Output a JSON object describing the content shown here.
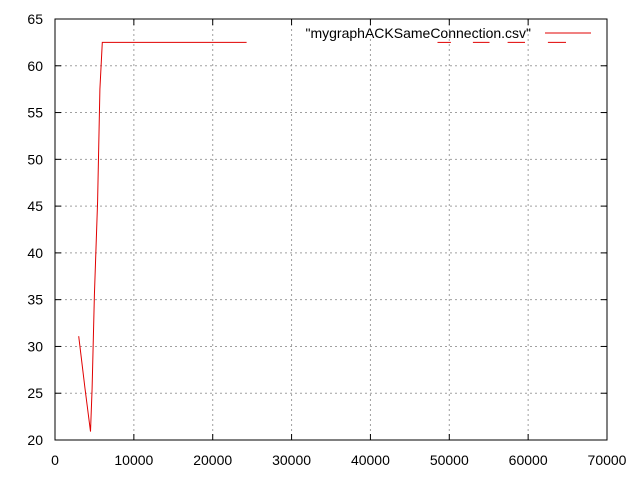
{
  "chart_data": {
    "type": "line",
    "title": "",
    "xlabel": "",
    "ylabel": "",
    "xlim": [
      0,
      70000
    ],
    "ylim": [
      20,
      65
    ],
    "xticks": [
      0,
      10000,
      20000,
      30000,
      40000,
      50000,
      60000,
      70000
    ],
    "yticks": [
      20,
      25,
      30,
      35,
      40,
      45,
      50,
      55,
      60,
      65
    ],
    "xtick_labels": [
      "0",
      "10000",
      "20000",
      "30000",
      "40000",
      "50000",
      "60000",
      "70000"
    ],
    "ytick_labels": [
      "20",
      "25",
      "30",
      "35",
      "40",
      "45",
      "50",
      "55",
      "60",
      "65"
    ],
    "grid": true,
    "legend_position": "top-right",
    "colors": {
      "series": "#e00000",
      "grid": "#a0a0a0",
      "axis": "#000000"
    },
    "series": [
      {
        "name": "\"mygraphACKSameConnection.csv\"",
        "x": [
          3000,
          3800,
          4500,
          4700,
          5000,
          5400,
          5700,
          6000,
          24300,
          48500,
          50200,
          53000,
          55100,
          57400,
          59600,
          62500,
          64800
        ],
        "y": [
          31.1,
          25.5,
          20.9,
          25.5,
          35.5,
          45.5,
          57.5,
          62.5,
          62.5,
          62.5,
          62.5,
          62.5,
          62.5,
          62.5,
          62.5,
          62.5,
          62.5
        ],
        "segments": [
          [
            0,
            8
          ],
          [
            9,
            10
          ],
          [
            11,
            12
          ],
          [
            13,
            14
          ],
          [
            15,
            16
          ]
        ]
      }
    ]
  }
}
